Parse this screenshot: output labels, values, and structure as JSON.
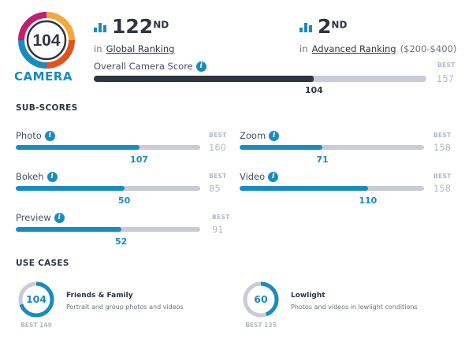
{
  "badge": {
    "score": "104",
    "label": "CAMERA"
  },
  "global_rank": {
    "number": "122",
    "suffix": "ND",
    "prefix": "in",
    "link": "Global Ranking"
  },
  "advanced_rank": {
    "number": "2",
    "suffix": "ND",
    "prefix": "in",
    "link": "Advanced Ranking",
    "range": "($200-$400)"
  },
  "overall": {
    "label": "Overall Camera Score",
    "value": "104",
    "best_caption": "BEST",
    "best": "157",
    "fraction": 0.662
  },
  "subscores_title": "SUB-SCORES",
  "subscores": [
    {
      "label": "Photo",
      "value": "107",
      "best_caption": "BEST",
      "best": "160",
      "fraction": 0.669
    },
    {
      "label": "Zoom",
      "value": "71",
      "best_caption": "BEST",
      "best": "158",
      "fraction": 0.449
    },
    {
      "label": "Bokeh",
      "value": "50",
      "best_caption": "BEST",
      "best": "85",
      "fraction": 0.588
    },
    {
      "label": "Video",
      "value": "110",
      "best_caption": "BEST",
      "best": "158",
      "fraction": 0.696
    },
    {
      "label": "Preview",
      "value": "52",
      "best_caption": "BEST",
      "best": "91",
      "fraction": 0.571
    }
  ],
  "usecases_title": "USE CASES",
  "usecases": [
    {
      "title": "Friends & Family",
      "desc": "Portrait and group photos and videos",
      "value": "104",
      "best": "BEST 149",
      "fraction": 0.698
    },
    {
      "title": "Lowlight",
      "desc": "Photos and videos in lowlight conditions",
      "value": "60",
      "best": "BEST 135",
      "fraction": 0.444
    }
  ],
  "colors": {
    "accent": "#1a8bc0",
    "dark": "#2f3542",
    "track": "#c9ccd6",
    "muted": "#b3b9c5"
  },
  "icons": {
    "rank": "bar-chart-icon",
    "info": "info-icon"
  }
}
